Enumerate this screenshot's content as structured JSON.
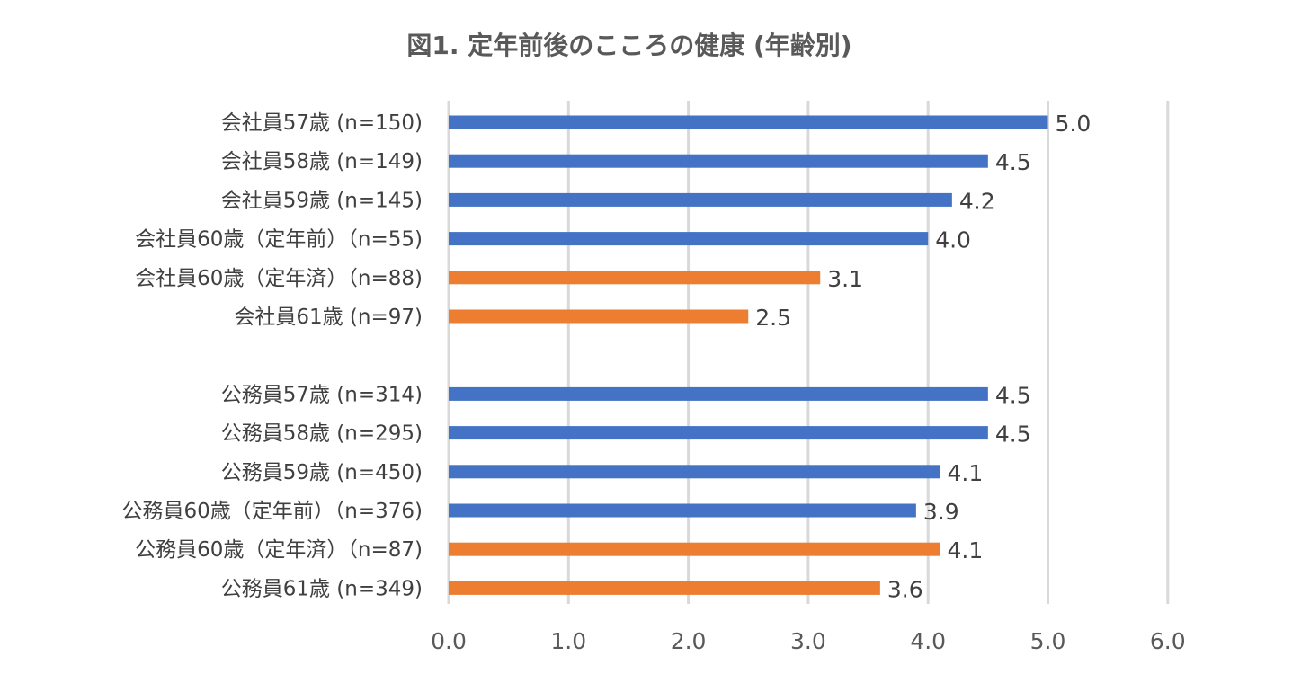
{
  "chart_data": {
    "type": "bar",
    "orientation": "horizontal",
    "title": "図1. 定年前後のこころの健康 (年齢別)",
    "xlabel": "",
    "ylabel": "",
    "xlim": [
      0,
      6
    ],
    "x_ticks": [
      "0.0",
      "1.0",
      "2.0",
      "3.0",
      "4.0",
      "5.0",
      "6.0"
    ],
    "grid": true,
    "legend": "none",
    "colors": {
      "pre_retirement": "#4472C4",
      "post_retirement": "#ED7D31"
    },
    "groups": [
      {
        "bars": [
          {
            "label": "会社員57歳 (n=150)",
            "value": 5.0,
            "value_label": "5.0",
            "color": "#4472C4"
          },
          {
            "label": "会社員58歳 (n=149)",
            "value": 4.5,
            "value_label": "4.5",
            "color": "#4472C4"
          },
          {
            "label": "会社員59歳 (n=145)",
            "value": 4.2,
            "value_label": "4.2",
            "color": "#4472C4"
          },
          {
            "label": "会社員60歳（定年前）（n=55)",
            "value": 4.0,
            "value_label": "4.0",
            "color": "#4472C4"
          },
          {
            "label": "会社員60歳（定年済）（n=88)",
            "value": 3.1,
            "value_label": "3.1",
            "color": "#ED7D31"
          },
          {
            "label": "会社員61歳 (n=97)",
            "value": 2.5,
            "value_label": "2.5",
            "color": "#ED7D31"
          }
        ]
      },
      {
        "bars": [
          {
            "label": "公務員57歳 (n=314)",
            "value": 4.5,
            "value_label": "4.5",
            "color": "#4472C4"
          },
          {
            "label": "公務員58歳 (n=295)",
            "value": 4.5,
            "value_label": "4.5",
            "color": "#4472C4"
          },
          {
            "label": "公務員59歳 (n=450)",
            "value": 4.1,
            "value_label": "4.1",
            "color": "#4472C4"
          },
          {
            "label": "公務員60歳（定年前）（n=376)",
            "value": 3.9,
            "value_label": "3.9",
            "color": "#4472C4"
          },
          {
            "label": "公務員60歳（定年済）（n=87)",
            "value": 4.1,
            "value_label": "4.1",
            "color": "#ED7D31"
          },
          {
            "label": "公務員61歳 (n=349)",
            "value": 3.6,
            "value_label": "3.6",
            "color": "#ED7D31"
          }
        ]
      }
    ]
  }
}
